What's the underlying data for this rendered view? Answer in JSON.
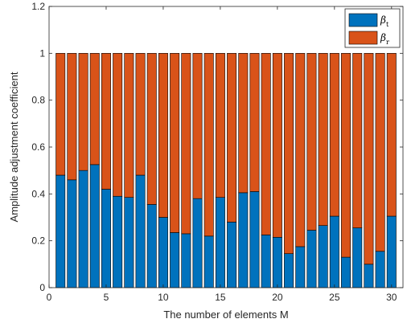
{
  "chart_data": {
    "type": "bar",
    "stacked": true,
    "xlabel": "The number of elements M",
    "ylabel": "Amplitude adjustment coefficient",
    "xlim": [
      0,
      31
    ],
    "ylim": [
      0,
      1.2
    ],
    "xticks": [
      0,
      5,
      10,
      15,
      20,
      25,
      30
    ],
    "yticks": [
      0,
      0.2,
      0.4,
      0.6,
      0.8,
      1,
      1.2
    ],
    "grid": false,
    "legend_position": "top-right",
    "categories": [
      1,
      2,
      3,
      4,
      5,
      6,
      7,
      8,
      9,
      10,
      11,
      12,
      13,
      14,
      15,
      16,
      17,
      18,
      19,
      20,
      21,
      22,
      23,
      24,
      25,
      26,
      27,
      28,
      29,
      30
    ],
    "series": [
      {
        "name": "β_t",
        "color": "#0072BD",
        "values": [
          0.48,
          0.46,
          0.5,
          0.525,
          0.42,
          0.39,
          0.385,
          0.48,
          0.355,
          0.3,
          0.235,
          0.23,
          0.38,
          0.22,
          0.385,
          0.28,
          0.405,
          0.41,
          0.225,
          0.215,
          0.145,
          0.175,
          0.245,
          0.265,
          0.305,
          0.13,
          0.255,
          0.1,
          0.155,
          0.305
        ]
      },
      {
        "name": "β_r",
        "color": "#D95319",
        "values": [
          0.52,
          0.54,
          0.5,
          0.475,
          0.58,
          0.61,
          0.615,
          0.52,
          0.645,
          0.7,
          0.765,
          0.77,
          0.62,
          0.78,
          0.615,
          0.72,
          0.595,
          0.59,
          0.775,
          0.785,
          0.855,
          0.825,
          0.755,
          0.735,
          0.695,
          0.87,
          0.745,
          0.9,
          0.845,
          0.695
        ]
      }
    ]
  },
  "legend": {
    "items": [
      {
        "symbol": "β",
        "sub": "t",
        "color": "#0072BD"
      },
      {
        "symbol": "β",
        "sub": "r",
        "color": "#D95319"
      }
    ]
  }
}
